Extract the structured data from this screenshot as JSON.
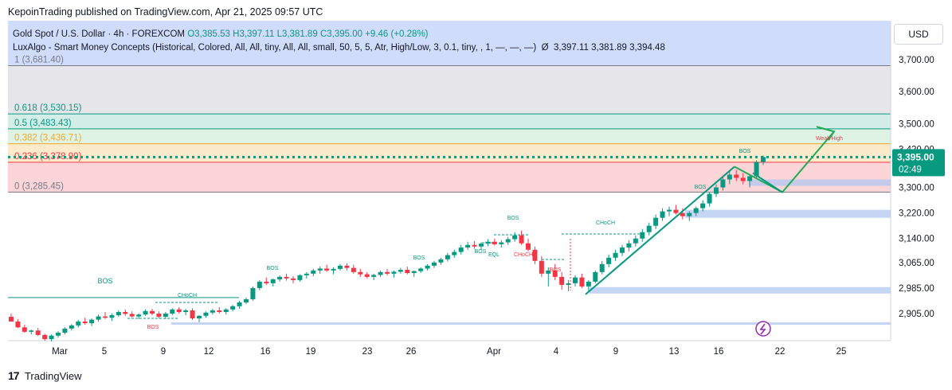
{
  "header": {
    "published": "KepoinTrading published on TradingView.com, Apr 21, 2025 09:57 UTC"
  },
  "legend": {
    "symbol": "Gold Spot / U.S. Dollar · 4h · FOREXCOM",
    "open": "O3,385.53",
    "high": "H3,397.11",
    "low": "L3,381.89",
    "close": "C3,395.00",
    "change": "+9.46 (+0.28%)",
    "indicator": "LuxAlgo - Smart Money Concepts (Historical, Colored, All, All, tiny, All, All, small, 50, 5, 5, Atr, High/Low, 3, 0.1, tiny, , 1, —, —, —)",
    "indicator_values": "3,397.11  3,381.89  3,394.48"
  },
  "currency_button": "USD",
  "footer": {
    "brand": "TradingView"
  },
  "chart_data": {
    "type": "candlestick",
    "timeframe": "4h",
    "y_axis": {
      "ticks": [
        3700,
        3600,
        3500,
        3420,
        3300,
        3220,
        3140,
        3065,
        2985,
        2905
      ],
      "tick_labels": [
        "3,700.00",
        "3,600.00",
        "3,500.00",
        "3,420.00",
        "3,300.00",
        "3,220.00",
        "3,140.00",
        "3,065.00",
        "2,985.00",
        "2,905.00"
      ]
    },
    "x_axis": {
      "tick_labels": [
        "Mar",
        "5",
        "9",
        "12",
        "16",
        "19",
        "23",
        "26",
        "Apr",
        "4",
        "9",
        "13",
        "16",
        "22",
        "25"
      ]
    },
    "last_price": {
      "value": "3,395.00",
      "countdown": "02:49",
      "color": "#089981"
    },
    "fibonacci": [
      {
        "label": "1 (3,681.40)",
        "level": 3681.4,
        "color": "#787b86"
      },
      {
        "label": "0.618 (3,530.15)",
        "level": 3530.15,
        "color": "#089981"
      },
      {
        "label": "0.5 (3,483.43)",
        "level": 3483.43,
        "color": "#089981"
      },
      {
        "label": "0.382 (3,436.71)",
        "level": 3436.71,
        "color": "#f5a623"
      },
      {
        "label": "0.236 (3,378.90)",
        "level": 3378.9,
        "color": "#f23645"
      },
      {
        "label": "0 (3,285.45)",
        "level": 3285.45,
        "color": "#787b86"
      }
    ],
    "annotations": [
      {
        "text": "BOS",
        "kind": "bos",
        "color": "#089981"
      },
      {
        "text": "CHoCH",
        "kind": "choch",
        "color": "#089981"
      },
      {
        "text": "BOS",
        "kind": "bos",
        "color": "#f23645"
      },
      {
        "text": "BOS",
        "kind": "bos",
        "color": "#089981"
      },
      {
        "text": "BOS",
        "kind": "bos",
        "color": "#089981"
      },
      {
        "text": "BOS",
        "kind": "bos",
        "color": "#089981"
      },
      {
        "text": "BOS",
        "kind": "bos",
        "color": "#089981"
      },
      {
        "text": "EQL",
        "kind": "eql",
        "color": "#089981"
      },
      {
        "text": "CHoCH",
        "kind": "choch",
        "color": "#f23645"
      },
      {
        "text": "BOS",
        "kind": "bos",
        "color": "#f23645"
      },
      {
        "text": "CHoCH",
        "kind": "choch",
        "color": "#089981"
      },
      {
        "text": "BOS",
        "kind": "bos",
        "color": "#089981"
      },
      {
        "text": "BOS",
        "kind": "bos",
        "color": "#089981"
      },
      {
        "text": "Weak High",
        "kind": "weak-high",
        "color": "#f23645"
      }
    ],
    "candles": [
      [
        2895,
        2905,
        2880,
        2880
      ],
      [
        2880,
        2888,
        2860,
        2862
      ],
      [
        2862,
        2870,
        2845,
        2848
      ],
      [
        2848,
        2855,
        2840,
        2852
      ],
      [
        2852,
        2860,
        2835,
        2838
      ],
      [
        2838,
        2842,
        2820,
        2825
      ],
      [
        2825,
        2840,
        2818,
        2836
      ],
      [
        2836,
        2850,
        2830,
        2845
      ],
      [
        2845,
        2862,
        2840,
        2858
      ],
      [
        2858,
        2872,
        2852,
        2868
      ],
      [
        2868,
        2885,
        2862,
        2880
      ],
      [
        2880,
        2892,
        2870,
        2875
      ],
      [
        2875,
        2890,
        2866,
        2886
      ],
      [
        2886,
        2902,
        2880,
        2896
      ],
      [
        2896,
        2910,
        2888,
        2892
      ],
      [
        2892,
        2905,
        2882,
        2900
      ],
      [
        2900,
        2915,
        2895,
        2910
      ],
      [
        2910,
        2918,
        2898,
        2904
      ],
      [
        2904,
        2912,
        2893,
        2896
      ],
      [
        2896,
        2906,
        2888,
        2902
      ],
      [
        2902,
        2918,
        2898,
        2913
      ],
      [
        2913,
        2920,
        2900,
        2905
      ],
      [
        2905,
        2912,
        2890,
        2895
      ],
      [
        2895,
        2910,
        2888,
        2905
      ],
      [
        2905,
        2922,
        2900,
        2918
      ],
      [
        2918,
        2925,
        2905,
        2910
      ],
      [
        2910,
        2920,
        2900,
        2915
      ],
      [
        2915,
        2922,
        2885,
        2890
      ],
      [
        2890,
        2900,
        2878,
        2898
      ],
      [
        2898,
        2912,
        2892,
        2908
      ],
      [
        2908,
        2920,
        2902,
        2915
      ],
      [
        2915,
        2925,
        2905,
        2910
      ],
      [
        2910,
        2922,
        2902,
        2918
      ],
      [
        2918,
        2932,
        2912,
        2928
      ],
      [
        2928,
        2945,
        2920,
        2940
      ],
      [
        2940,
        2955,
        2935,
        2950
      ],
      [
        2950,
        2990,
        2945,
        2985
      ],
      [
        2985,
        3010,
        2978,
        3005
      ],
      [
        3005,
        3018,
        2995,
        3000
      ],
      [
        3000,
        3015,
        2990,
        3012
      ],
      [
        3012,
        3025,
        3005,
        3020
      ],
      [
        3020,
        3030,
        3008,
        3015
      ],
      [
        3015,
        3022,
        3000,
        3010
      ],
      [
        3010,
        3028,
        3005,
        3025
      ],
      [
        3025,
        3035,
        3015,
        3030
      ],
      [
        3030,
        3045,
        3022,
        3040
      ],
      [
        3040,
        3052,
        3030,
        3046
      ],
      [
        3046,
        3058,
        3036,
        3040
      ],
      [
        3040,
        3050,
        3028,
        3045
      ],
      [
        3045,
        3060,
        3040,
        3055
      ],
      [
        3055,
        3062,
        3040,
        3048
      ],
      [
        3048,
        3058,
        3030,
        3035
      ],
      [
        3035,
        3045,
        3020,
        3028
      ],
      [
        3028,
        3035,
        3015,
        3020
      ],
      [
        3020,
        3030,
        3010,
        3026
      ],
      [
        3026,
        3040,
        3020,
        3035
      ],
      [
        3035,
        3045,
        3025,
        3030
      ],
      [
        3030,
        3040,
        3018,
        3036
      ],
      [
        3036,
        3048,
        3030,
        3042
      ],
      [
        3042,
        3052,
        3028,
        3032
      ],
      [
        3032,
        3040,
        3020,
        3038
      ],
      [
        3038,
        3050,
        3032,
        3046
      ],
      [
        3046,
        3060,
        3040,
        3055
      ],
      [
        3055,
        3070,
        3048,
        3065
      ],
      [
        3065,
        3080,
        3058,
        3075
      ],
      [
        3075,
        3095,
        3068,
        3088
      ],
      [
        3088,
        3105,
        3080,
        3098
      ],
      [
        3098,
        3120,
        3090,
        3112
      ],
      [
        3112,
        3130,
        3105,
        3120
      ],
      [
        3120,
        3132,
        3108,
        3115
      ],
      [
        3115,
        3128,
        3105,
        3124
      ],
      [
        3124,
        3138,
        3116,
        3130
      ],
      [
        3130,
        3140,
        3118,
        3122
      ],
      [
        3122,
        3135,
        3112,
        3128
      ],
      [
        3128,
        3145,
        3120,
        3138
      ],
      [
        3138,
        3160,
        3130,
        3150
      ],
      [
        3150,
        3165,
        3120,
        3125
      ],
      [
        3125,
        3140,
        3100,
        3105
      ],
      [
        3105,
        3115,
        3060,
        3070
      ],
      [
        3070,
        3085,
        3020,
        3030
      ],
      [
        3030,
        3050,
        2990,
        3040
      ],
      [
        3040,
        3060,
        3010,
        3020
      ],
      [
        3020,
        3035,
        2980,
        2995
      ],
      [
        2995,
        3010,
        2975,
        3000
      ],
      [
        3000,
        3025,
        2990,
        3018
      ],
      [
        3018,
        3030,
        2985,
        2990
      ],
      [
        2990,
        3010,
        2975,
        3005
      ],
      [
        3005,
        3040,
        3000,
        3035
      ],
      [
        3035,
        3070,
        3028,
        3060
      ],
      [
        3060,
        3090,
        3050,
        3080
      ],
      [
        3080,
        3105,
        3070,
        3095
      ],
      [
        3095,
        3120,
        3085,
        3112
      ],
      [
        3112,
        3135,
        3100,
        3125
      ],
      [
        3125,
        3150,
        3115,
        3140
      ],
      [
        3140,
        3170,
        3130,
        3160
      ],
      [
        3160,
        3190,
        3150,
        3180
      ],
      [
        3180,
        3215,
        3170,
        3205
      ],
      [
        3205,
        3235,
        3195,
        3225
      ],
      [
        3225,
        3240,
        3210,
        3230
      ],
      [
        3230,
        3245,
        3215,
        3220
      ],
      [
        3220,
        3235,
        3200,
        3210
      ],
      [
        3210,
        3225,
        3195,
        3220
      ],
      [
        3220,
        3240,
        3210,
        3235
      ],
      [
        3235,
        3260,
        3225,
        3250
      ],
      [
        3250,
        3285,
        3240,
        3280
      ],
      [
        3280,
        3310,
        3270,
        3300
      ],
      [
        3300,
        3335,
        3290,
        3325
      ],
      [
        3325,
        3350,
        3310,
        3340
      ],
      [
        3340,
        3355,
        3320,
        3330
      ],
      [
        3330,
        3345,
        3310,
        3320
      ],
      [
        3320,
        3340,
        3300,
        3335
      ],
      [
        3335,
        3385,
        3330,
        3380
      ],
      [
        3380,
        3400,
        3370,
        3395
      ]
    ],
    "zones": [
      {
        "from": 3305,
        "to": 3325,
        "color": "#b2c7f0"
      },
      {
        "from": 3205,
        "to": 3230,
        "color": "#b2c7f0"
      },
      {
        "from": 2968,
        "to": 2988,
        "color": "#b2c7f0"
      },
      {
        "from": 2870,
        "to": 2878,
        "color": "#b2c7f0"
      }
    ],
    "projection": {
      "points": [
        [
          3250,
          3280
        ],
        [
          3375,
          3505
        ]
      ],
      "color": "#089981"
    }
  }
}
